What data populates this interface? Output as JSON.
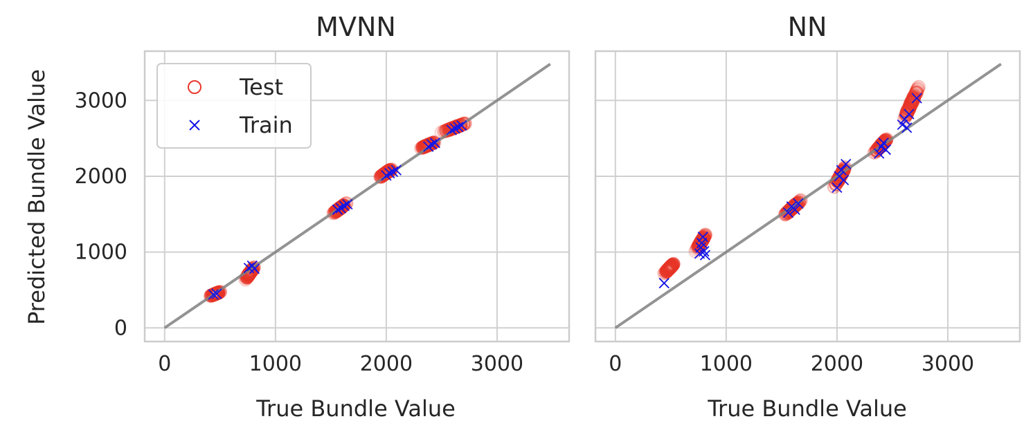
{
  "colors": {
    "test": "#e8382b",
    "train": "#1414e6",
    "identity": "#808080",
    "grid": "#d0d0d0",
    "frame": "#cccccc",
    "background": "#ffffff"
  },
  "legend": {
    "placement": "upper-left",
    "entries": [
      {
        "label": "Test",
        "marker": "open-circle",
        "color": "#e8382b"
      },
      {
        "label": "Train",
        "marker": "x",
        "color": "#1414e6"
      }
    ]
  },
  "chart_data": [
    {
      "type": "scatter",
      "title": "MVNN",
      "xlabel": "True Bundle Value",
      "ylabel": "Predicted Bundle Value",
      "xlim": [
        -180,
        3650
      ],
      "ylim": [
        -180,
        3650
      ],
      "xticks": [
        0,
        1000,
        2000,
        3000
      ],
      "yticks": [
        0,
        1000,
        2000,
        3000
      ],
      "grid": true,
      "legend": true,
      "identity_line": {
        "from": [
          0,
          0
        ],
        "to": [
          3480,
          3480
        ]
      },
      "test_clusters": [
        {
          "x": [
            380,
            540
          ],
          "y": [
            400,
            500
          ]
        },
        {
          "x": [
            700,
            830
          ],
          "y": [
            580,
            850
          ]
        },
        {
          "x": [
            1480,
            1680
          ],
          "y": [
            1460,
            1690
          ]
        },
        {
          "x": [
            1900,
            2100
          ],
          "y": [
            1940,
            2150
          ]
        },
        {
          "x": [
            2270,
            2480
          ],
          "y": [
            2340,
            2480
          ]
        },
        {
          "x": [
            2440,
            2780
          ],
          "y": [
            2540,
            2740
          ]
        }
      ],
      "series": [
        {
          "name": "Train",
          "x": [
            440,
            470,
            760,
            790,
            810,
            1560,
            1590,
            1620,
            1650,
            2000,
            2030,
            2060,
            2090,
            2380,
            2410,
            2440,
            2590,
            2620,
            2650,
            2680
          ],
          "y": [
            440,
            450,
            790,
            820,
            780,
            1560,
            1580,
            1610,
            1630,
            2010,
            2040,
            2060,
            2080,
            2390,
            2420,
            2440,
            2610,
            2630,
            2650,
            2670
          ]
        }
      ]
    },
    {
      "type": "scatter",
      "title": "NN",
      "xlabel": "True Bundle Value",
      "ylabel": "",
      "xlim": [
        -180,
        3650
      ],
      "ylim": [
        -180,
        3650
      ],
      "xticks": [
        0,
        1000,
        2000,
        3000
      ],
      "yticks": [
        0,
        1000,
        2000,
        3000
      ],
      "grid": true,
      "legend": false,
      "identity_line": {
        "from": [
          0,
          0
        ],
        "to": [
          3480,
          3480
        ]
      },
      "test_clusters": [
        {
          "x": [
            420,
            560
          ],
          "y": [
            680,
            900
          ]
        },
        {
          "x": [
            700,
            850
          ],
          "y": [
            950,
            1320
          ]
        },
        {
          "x": [
            1480,
            1720
          ],
          "y": [
            1420,
            1750
          ]
        },
        {
          "x": [
            1950,
            2110
          ],
          "y": [
            1780,
            2220
          ]
        },
        {
          "x": [
            2300,
            2500
          ],
          "y": [
            2240,
            2580
          ]
        },
        {
          "x": [
            2560,
            2780
          ],
          "y": [
            2600,
            3320
          ]
        }
      ],
      "series": [
        {
          "name": "Train",
          "x": [
            440,
            760,
            770,
            780,
            790,
            800,
            810,
            1560,
            1590,
            1620,
            1650,
            2000,
            2020,
            2040,
            2060,
            2080,
            2380,
            2400,
            2420,
            2440,
            2590,
            2610,
            2630,
            2650,
            2720
          ],
          "y": [
            590,
            980,
            1060,
            1120,
            1200,
            1010,
            960,
            1520,
            1600,
            1560,
            1640,
            1850,
            2000,
            2080,
            1950,
            2160,
            2300,
            2390,
            2440,
            2350,
            2680,
            2750,
            2640,
            2820,
            3030
          ]
        }
      ]
    }
  ]
}
